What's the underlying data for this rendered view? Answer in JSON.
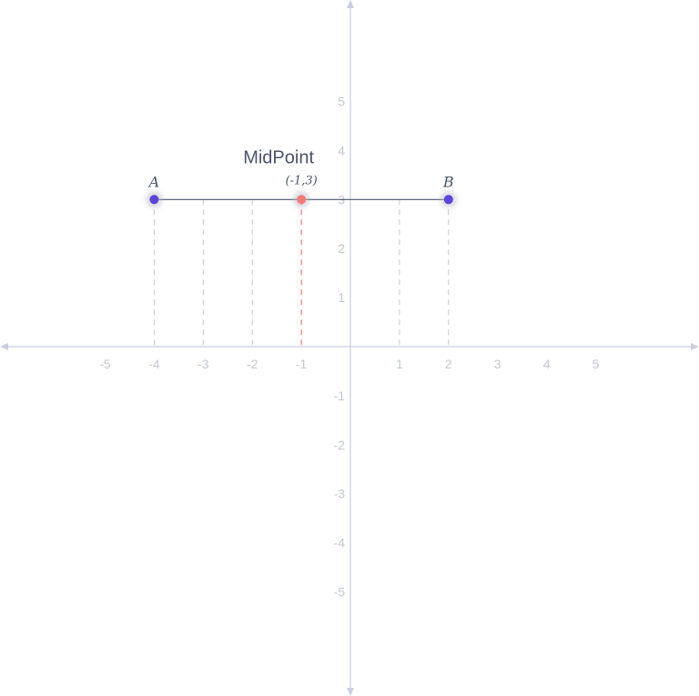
{
  "graph": {
    "x_range": [
      -5,
      5
    ],
    "y_range": [
      -5,
      5
    ],
    "x_ticks": [
      "-5",
      "-4",
      "-3",
      "-2",
      "-1",
      "1",
      "2",
      "3",
      "4",
      "5"
    ],
    "y_ticks": [
      "5",
      "4",
      "3",
      "2",
      "1",
      "-1",
      "-2",
      "-3",
      "-4",
      "-5"
    ],
    "colors": {
      "axis": "#c9cfe0",
      "segment": "#4b5468",
      "endpoint": "#5b45d6",
      "midpoint": "#f07b78",
      "guide": "#c4c8d2",
      "mid_guide": "#f07b78"
    }
  },
  "points": {
    "a": {
      "label": "A",
      "x": -4,
      "y": 3
    },
    "b": {
      "label": "B",
      "x": 2,
      "y": 3
    },
    "mid": {
      "label": "MidPoint",
      "coord_label": "(-1,3)",
      "x": -1,
      "y": 3
    }
  },
  "guides_x": [
    -4,
    -3,
    -2,
    1,
    2
  ]
}
